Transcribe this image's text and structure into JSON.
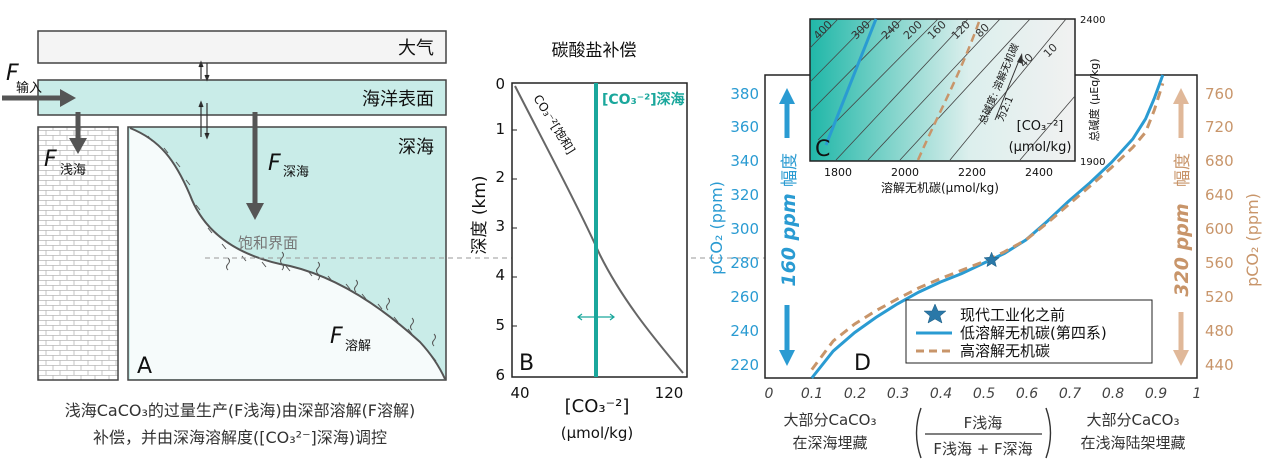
{
  "panelA": {
    "atmosphere_label": "大气",
    "ocean_surface_label": "海洋表面",
    "deep_ocean_label": "深海",
    "saturation_horizon_label": "饱和界面",
    "f_symbol": "F",
    "input_sub": "输入",
    "shallow_sub": "浅海",
    "deep_sub": "深海",
    "dissolution_sub": "溶解",
    "letter": "A",
    "caption_line1": "浅海CaCO₃的过量生产(F浅海)由深部溶解(F溶解)",
    "caption_line2": "补偿，并由深海溶解度([CO₃²⁻]深海)调控"
  },
  "panelB": {
    "title": "碳酸盐补偿",
    "ylabel": "深度 (km)",
    "xlabel": "[CO₃⁻²]",
    "xunit": "(μmol/kg)",
    "saturation_curve_label": "CO₃⁻²[饱和]",
    "deep_line_label": "[CO₃⁻²]深海",
    "letter": "B",
    "y_ticks": [
      "0",
      "1",
      "2",
      "3",
      "4",
      "5",
      "6"
    ],
    "x_ticks": [
      "40",
      "120"
    ]
  },
  "panelC": {
    "letter": "C",
    "xlabel": "溶解无机碳(μmol/kg)",
    "ylabel": "总碱度 (μEq/kg)",
    "inner_label": "[CO₃⁻²]",
    "inner_unit": "(μmol/kg)",
    "ratio_label": "总碱度: 溶解无机碳",
    "ratio_value": "为2:1",
    "x_ticks": [
      "1800",
      "2000",
      "2200",
      "2400"
    ],
    "y_ticks": [
      "2400",
      "1900"
    ],
    "contour_labels": [
      "400",
      "300",
      "240",
      "200",
      "160",
      "120",
      "80",
      "40",
      "10"
    ]
  },
  "panelD": {
    "letter": "D",
    "left_axis_label": "pCO₂ (ppm)",
    "right_axis_label": "pCO₂ (ppm)",
    "left_range_word": "幅度",
    "left_range_value": "160 ppm",
    "right_range_word": "幅度",
    "right_range_value": "320 ppm",
    "left_ticks": [
      "220",
      "240",
      "260",
      "280",
      "300",
      "320",
      "340",
      "360",
      "380"
    ],
    "right_ticks": [
      "440",
      "480",
      "520",
      "560",
      "600",
      "640",
      "680",
      "720",
      "760"
    ],
    "x_ticks": [
      "0",
      "0.1",
      "0.2",
      "0.3",
      "0.4",
      "0.5",
      "0.6",
      "0.7",
      "0.8",
      "0.9",
      "1"
    ],
    "legend": [
      "现代工业化之前",
      "低溶解无机碳(第四系)",
      "高溶解无机碳"
    ],
    "bottom_left": [
      "大部分CaCO₃",
      "在深海埋藏"
    ],
    "bottom_right": [
      "大部分CaCO₃",
      "在浅海陆架埋藏"
    ],
    "frac_num": "F浅海",
    "frac_den": "F浅海 + F深海",
    "colors": {
      "blue": "#2a9bd2",
      "orange": "#c8956a",
      "teal": "#1aa79c"
    }
  },
  "chart_data": {
    "type": "line",
    "xlabel": "",
    "ylabel": "pCO₂ (ppm)",
    "xlim": [
      0,
      1
    ],
    "ylim": [
      210,
      390
    ],
    "y2lim": [
      420,
      780
    ],
    "series": [
      {
        "name": "低溶解无机碳(第四系)",
        "x": [
          0.1,
          0.15,
          0.2,
          0.25,
          0.3,
          0.35,
          0.4,
          0.45,
          0.5,
          0.55,
          0.6,
          0.65,
          0.7,
          0.75,
          0.8,
          0.85,
          0.88,
          0.9,
          0.92
        ],
        "y": [
          210,
          226,
          237,
          246,
          254,
          261,
          267,
          272,
          278,
          284,
          292,
          303,
          315,
          326,
          338,
          352,
          364,
          376,
          390
        ]
      },
      {
        "name": "高溶解无机碳",
        "x": [
          0.1,
          0.15,
          0.2,
          0.25,
          0.3,
          0.35,
          0.4,
          0.45,
          0.5,
          0.55,
          0.6,
          0.65,
          0.7,
          0.75,
          0.8,
          0.85,
          0.88,
          0.9,
          0.92
        ],
        "y": [
          430,
          464,
          484,
          500,
          514,
          527,
          538,
          548,
          558,
          570,
          584,
          604,
          626,
          648,
          670,
          694,
          712,
          738,
          770
        ],
        "axis": "right"
      }
    ],
    "points": [
      {
        "name": "现代工业化之前",
        "x": 0.52,
        "y": 280
      }
    ]
  }
}
